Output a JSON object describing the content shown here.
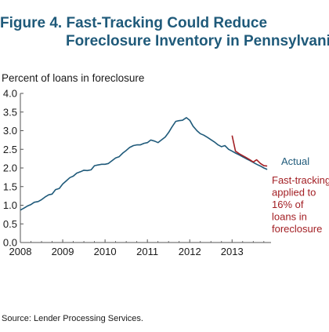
{
  "title": {
    "line1": "Figure 4. Fast-Tracking Could Reduce",
    "line2": "Foreclosure Inventory in Pennsylvania"
  },
  "source": "Source: Lender Processing Services.",
  "colors": {
    "actual": "#1f5a7a",
    "fast_tracking": "#a32025",
    "title": "#1f5a7a",
    "axis": "#555555"
  },
  "chart_data": {
    "type": "line",
    "ylabel": "Percent of loans in foreclosure",
    "xlabel": "",
    "ylim": [
      0.0,
      4.0
    ],
    "xlim": [
      2008.0,
      2013.92
    ],
    "yticks": [
      "0.0",
      "0.5",
      "1.0",
      "1.5",
      "2.0",
      "2.5",
      "3.0",
      "3.5",
      "4.0"
    ],
    "xticks": [
      "2008",
      "2009",
      "2010",
      "2011",
      "2012",
      "2013"
    ],
    "grid": false,
    "series": [
      {
        "name": "Actual",
        "labels": [
          "Actual"
        ],
        "x": [
          2008.0,
          2008.08,
          2008.17,
          2008.25,
          2008.33,
          2008.42,
          2008.5,
          2008.58,
          2008.67,
          2008.75,
          2008.83,
          2008.92,
          2009.0,
          2009.08,
          2009.17,
          2009.25,
          2009.33,
          2009.42,
          2009.5,
          2009.58,
          2009.67,
          2009.75,
          2009.83,
          2009.92,
          2010.0,
          2010.08,
          2010.17,
          2010.25,
          2010.33,
          2010.42,
          2010.5,
          2010.58,
          2010.67,
          2010.75,
          2010.83,
          2010.92,
          2011.0,
          2011.08,
          2011.17,
          2011.25,
          2011.33,
          2011.42,
          2011.5,
          2011.58,
          2011.67,
          2011.75,
          2011.83,
          2011.92,
          2012.0,
          2012.08,
          2012.17,
          2012.25,
          2012.33,
          2012.42,
          2012.5,
          2012.58,
          2012.67,
          2012.75,
          2012.83,
          2012.92,
          2013.0,
          2013.08,
          2013.17,
          2013.25,
          2013.33,
          2013.42,
          2013.5,
          2013.58,
          2013.67,
          2013.75,
          2013.83
        ],
        "values": [
          0.87,
          0.92,
          0.98,
          1.02,
          1.08,
          1.1,
          1.15,
          1.22,
          1.28,
          1.3,
          1.42,
          1.45,
          1.57,
          1.65,
          1.74,
          1.78,
          1.86,
          1.9,
          1.94,
          1.93,
          1.95,
          2.06,
          2.08,
          2.1,
          2.1,
          2.12,
          2.2,
          2.27,
          2.3,
          2.4,
          2.47,
          2.55,
          2.6,
          2.62,
          2.62,
          2.66,
          2.68,
          2.75,
          2.72,
          2.68,
          2.75,
          2.83,
          2.95,
          3.1,
          3.25,
          3.27,
          3.28,
          3.35,
          3.28,
          3.12,
          3.0,
          2.92,
          2.88,
          2.82,
          2.76,
          2.7,
          2.62,
          2.57,
          2.6,
          2.5,
          2.45,
          2.4,
          2.35,
          2.3,
          2.25,
          2.2,
          2.15,
          2.1,
          2.05,
          2.0,
          1.96
        ]
      },
      {
        "name": "Fast-tracking applied to 16% of loans in foreclosure",
        "labels": [
          "Fast-tracking",
          "applied to",
          "16% of",
          "loans in",
          "foreclosure"
        ],
        "x": [
          2013.0,
          2013.08,
          2013.17,
          2013.25,
          2013.33,
          2013.42,
          2013.5,
          2013.58,
          2013.67,
          2013.75,
          2013.83
        ],
        "values": [
          2.87,
          2.45,
          2.38,
          2.33,
          2.28,
          2.22,
          2.16,
          2.22,
          2.12,
          2.06,
          2.05
        ]
      }
    ]
  }
}
